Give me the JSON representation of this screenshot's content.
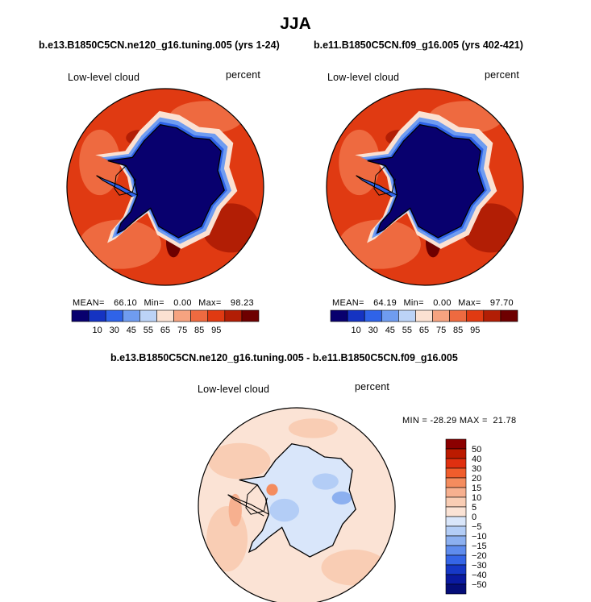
{
  "figure": {
    "title": "JJA",
    "panel1": {
      "case_title": "b.e13.B1850C5CN.ne120_g16.tuning.005 (yrs 1-24)",
      "var_label": "Low-level cloud",
      "units": "percent",
      "mean_label": "MEAN=",
      "mean_value": "66.10",
      "min_label": "Min=",
      "min_value": "0.00",
      "max_label": "Max=",
      "max_value": "98.23"
    },
    "panel2": {
      "case_title": "b.e11.B1850C5CN.f09_g16.005 (yrs 402-421)",
      "var_label": "Low-level cloud",
      "units": "percent",
      "mean_label": "MEAN=",
      "mean_value": "64.19",
      "min_label": "Min=",
      "min_value": "0.00",
      "max_label": "Max=",
      "max_value": "97.70"
    },
    "panel3": {
      "case_title": "b.e13.B1850C5CN.ne120_g16.tuning.005 - b.e11.B1850C5CN.f09_g16.005",
      "var_label": "Low-level cloud",
      "units": "percent",
      "minmax_text": "MIN = -28.29 MAX =  21.78"
    }
  },
  "chart_data": [
    {
      "type": "heatmap",
      "projection": "south-polar-stereographic",
      "title": "b.e13.B1850C5CN.ne120_g16.tuning.005 (yrs 1-24)",
      "variable": "Low-level cloud",
      "units": "percent",
      "stats": {
        "mean": 66.1,
        "min": 0.0,
        "max": 98.23
      },
      "colorbar_levels": [
        10,
        30,
        45,
        55,
        65,
        75,
        85,
        95
      ],
      "colorbar_colors": [
        "#08006e",
        "#1533c2",
        "#2f63e8",
        "#6f9cf0",
        "#bcd3f7",
        "#fbe1d2",
        "#f6a380",
        "#ee6a40",
        "#e03a12",
        "#b21e05",
        "#6e0000"
      ]
    },
    {
      "type": "heatmap",
      "projection": "south-polar-stereographic",
      "title": "b.e11.B1850C5CN.f09_g16.005 (yrs 402-421)",
      "variable": "Low-level cloud",
      "units": "percent",
      "stats": {
        "mean": 64.19,
        "min": 0.0,
        "max": 97.7
      },
      "colorbar_levels": [
        10,
        30,
        45,
        55,
        65,
        75,
        85,
        95
      ],
      "colorbar_colors": [
        "#08006e",
        "#1533c2",
        "#2f63e8",
        "#6f9cf0",
        "#bcd3f7",
        "#fbe1d2",
        "#f6a380",
        "#ee6a40",
        "#e03a12",
        "#b21e05",
        "#6e0000"
      ]
    },
    {
      "type": "heatmap",
      "projection": "south-polar-stereographic",
      "title": "b.e13.B1850C5CN.ne120_g16.tuning.005 - b.e11.B1850C5CN.f09_g16.005",
      "variable": "Low-level cloud",
      "units": "percent",
      "stats": {
        "min": -28.29,
        "max": 21.78
      },
      "colorbar_levels": [
        50,
        40,
        30,
        20,
        15,
        10,
        5,
        0,
        -5,
        -10,
        -15,
        -20,
        -30,
        -40,
        -50
      ],
      "colorbar_tick_labels": [
        "50",
        "40",
        "30",
        "20",
        "15",
        "10",
        "5",
        "0",
        "−5",
        "−10",
        "−15",
        "−20",
        "−30",
        "−40",
        "−50"
      ],
      "colorbar_colors": [
        "#8b0000",
        "#bb1a00",
        "#e03010",
        "#f05d2c",
        "#f48c5e",
        "#f7b08f",
        "#f9cdb4",
        "#fbe3d5",
        "#d9e6fa",
        "#b3cdf6",
        "#8cb0f0",
        "#5f8ced",
        "#3565e6",
        "#1638c6",
        "#0a1aa0",
        "#050d78"
      ]
    }
  ]
}
